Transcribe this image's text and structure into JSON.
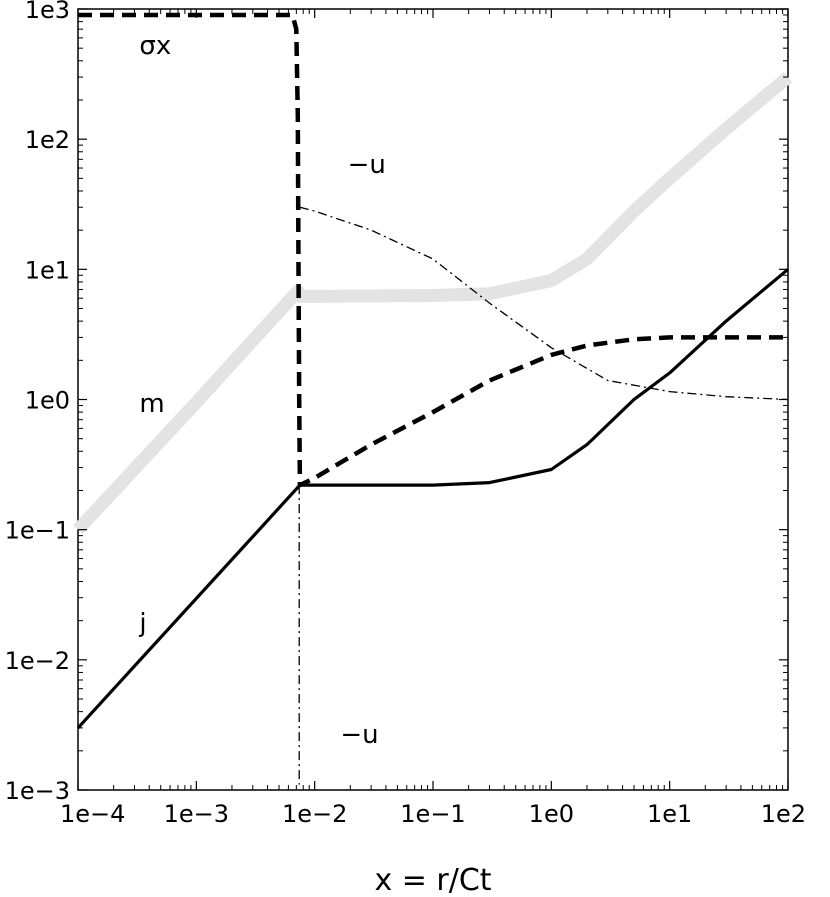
{
  "chart_data": {
    "type": "line",
    "title": "",
    "xlabel": "x = r/Ct",
    "ylabel": "",
    "x_scale": "log",
    "y_scale": "log",
    "xlim": [
      0.0001,
      100
    ],
    "ylim": [
      0.001,
      1000
    ],
    "grid": false,
    "legend": "none",
    "x_ticks": [
      {
        "value": 0.0001,
        "label": "1e−4"
      },
      {
        "value": 0.001,
        "label": "1e−3"
      },
      {
        "value": 0.01,
        "label": "1e−2"
      },
      {
        "value": 0.1,
        "label": "1e−1"
      },
      {
        "value": 1,
        "label": "1e0"
      },
      {
        "value": 10,
        "label": "1e1"
      },
      {
        "value": 100,
        "label": "1e2"
      }
    ],
    "y_ticks": [
      {
        "value": 0.001,
        "label": "1e−3"
      },
      {
        "value": 0.01,
        "label": "1e−2"
      },
      {
        "value": 0.1,
        "label": "1e−1"
      },
      {
        "value": 1,
        "label": "1e0"
      },
      {
        "value": 10,
        "label": "1e1"
      },
      {
        "value": 100,
        "label": "1e2"
      },
      {
        "value": 1000,
        "label": "1e3"
      }
    ],
    "annotations": [
      {
        "text": "σx",
        "x": 0.00033,
        "y": 450
      },
      {
        "text": "−u",
        "x": 0.019,
        "y": 55
      },
      {
        "text": "m",
        "x": 0.00033,
        "y": 0.8
      },
      {
        "text": "j",
        "x": 0.00033,
        "y": 0.0165
      },
      {
        "text": "−u",
        "x": 0.0165,
        "y": 0.0023
      }
    ],
    "series": [
      {
        "id": "m",
        "style": "thick-gray",
        "color": "#e3e3e3",
        "x": [
          0.0001,
          0.001,
          0.0072,
          0.0075,
          0.01,
          0.1,
          0.3,
          1,
          2,
          5,
          10,
          30,
          100
        ],
        "y": [
          0.1,
          0.95,
          6.8,
          6.2,
          6.2,
          6.3,
          6.5,
          8.2,
          12,
          28,
          50,
          120,
          300
        ]
      },
      {
        "id": "sigma-x",
        "style": "dashed-thick",
        "color": "#000000",
        "x": [
          0.0001,
          0.0065,
          0.007,
          0.0072,
          0.0073,
          0.0074,
          0.0075,
          0.01,
          0.03,
          0.1,
          0.3,
          1,
          2,
          5,
          10,
          30,
          100
        ],
        "y": [
          900,
          900,
          700,
          150,
          10,
          1,
          0.22,
          0.25,
          0.45,
          0.8,
          1.4,
          2.2,
          2.6,
          2.9,
          3.0,
          3.0,
          3.0
        ]
      },
      {
        "id": "minus-u-upper",
        "style": "dash-dot",
        "color": "#000000",
        "x": [
          0.0075,
          0.01,
          0.03,
          0.1,
          0.3,
          1,
          3,
          10,
          30,
          100
        ],
        "y": [
          30,
          28,
          20,
          12,
          5.5,
          2.5,
          1.4,
          1.15,
          1.05,
          1.0
        ]
      },
      {
        "id": "minus-u-lower",
        "style": "dash-dot",
        "color": "#000000",
        "x": [
          0.0074,
          0.0074
        ],
        "y": [
          0.22,
          0.0011
        ]
      },
      {
        "id": "j",
        "style": "solid",
        "color": "#000000",
        "x": [
          0.0001,
          0.0075,
          0.01,
          0.1,
          0.3,
          1,
          2,
          5,
          10,
          30,
          100
        ],
        "y": [
          0.003,
          0.22,
          0.22,
          0.22,
          0.23,
          0.29,
          0.45,
          1.0,
          1.6,
          4.0,
          10
        ]
      }
    ]
  }
}
